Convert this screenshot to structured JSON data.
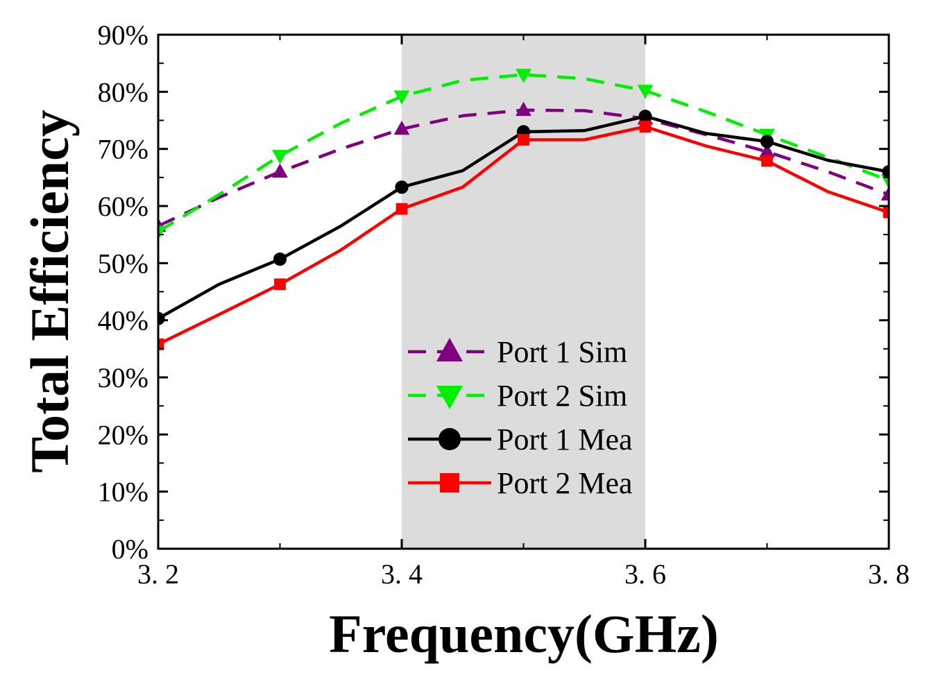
{
  "chart_data": {
    "type": "line",
    "title": "",
    "xlabel": "Frequency(GHz)",
    "ylabel": "Total Efficiency",
    "xlim": [
      3.2,
      3.8
    ],
    "ylim": [
      0,
      90
    ],
    "x_ticks": [
      {
        "value": 3.2,
        "label": "3. 2"
      },
      {
        "value": 3.4,
        "label": "3. 4"
      },
      {
        "value": 3.6,
        "label": "3. 6"
      },
      {
        "value": 3.8,
        "label": "3. 8"
      }
    ],
    "y_ticks": [
      {
        "value": 0,
        "label": "0%"
      },
      {
        "value": 10,
        "label": "10%"
      },
      {
        "value": 20,
        "label": "20%"
      },
      {
        "value": 30,
        "label": "30%"
      },
      {
        "value": 40,
        "label": "40%"
      },
      {
        "value": 50,
        "label": "50%"
      },
      {
        "value": 60,
        "label": "60%"
      },
      {
        "value": 70,
        "label": "70%"
      },
      {
        "value": 80,
        "label": "80%"
      },
      {
        "value": 90,
        "label": "90%"
      }
    ],
    "shaded_band": {
      "x_start": 3.4,
      "x_end": 3.6,
      "color": "#dcdcdc"
    },
    "legend_position": "center",
    "series": [
      {
        "name": "Port 1 Sim",
        "color": "#800080",
        "dash": "dashed",
        "marker": "triangle-up",
        "points": [
          [
            3.2,
            56.5
          ],
          [
            3.25,
            61.5
          ],
          [
            3.3,
            66
          ],
          [
            3.35,
            70
          ],
          [
            3.4,
            73.5
          ],
          [
            3.45,
            75.8
          ],
          [
            3.5,
            76.8
          ],
          [
            3.55,
            76.7
          ],
          [
            3.6,
            75.3
          ],
          [
            3.65,
            72.5
          ],
          [
            3.7,
            69.5
          ],
          [
            3.75,
            66
          ],
          [
            3.8,
            62
          ]
        ],
        "marker_x": [
          3.2,
          3.3,
          3.4,
          3.5,
          3.6,
          3.7,
          3.8
        ]
      },
      {
        "name": "Port 2 Sim",
        "color": "#00ee00",
        "dash": "dashed",
        "marker": "triangle-down",
        "points": [
          [
            3.2,
            55.5
          ],
          [
            3.25,
            62
          ],
          [
            3.3,
            68.8
          ],
          [
            3.35,
            74.5
          ],
          [
            3.4,
            79.2
          ],
          [
            3.45,
            82
          ],
          [
            3.5,
            83
          ],
          [
            3.55,
            82.3
          ],
          [
            3.6,
            80.2
          ],
          [
            3.65,
            76.5
          ],
          [
            3.7,
            72.5
          ],
          [
            3.75,
            68.5
          ],
          [
            3.8,
            64.5
          ]
        ],
        "marker_x": [
          3.2,
          3.3,
          3.4,
          3.5,
          3.6,
          3.7,
          3.8
        ]
      },
      {
        "name": "Port 1 Mea",
        "color": "#000000",
        "dash": "solid",
        "marker": "circle",
        "points": [
          [
            3.2,
            40.3
          ],
          [
            3.25,
            46.3
          ],
          [
            3.3,
            50.7
          ],
          [
            3.35,
            56.5
          ],
          [
            3.4,
            63.3
          ],
          [
            3.45,
            66.2
          ],
          [
            3.5,
            73
          ],
          [
            3.55,
            73.2
          ],
          [
            3.6,
            75.7
          ],
          [
            3.65,
            72.7
          ],
          [
            3.7,
            71.3
          ],
          [
            3.75,
            68
          ],
          [
            3.8,
            66
          ]
        ],
        "marker_x": [
          3.2,
          3.3,
          3.4,
          3.5,
          3.6,
          3.7,
          3.8
        ]
      },
      {
        "name": "Port 2 Mea",
        "color": "#ff0000",
        "dash": "solid",
        "marker": "square",
        "points": [
          [
            3.2,
            35.8
          ],
          [
            3.25,
            41
          ],
          [
            3.3,
            46.3
          ],
          [
            3.35,
            52.3
          ],
          [
            3.4,
            59.5
          ],
          [
            3.45,
            63.3
          ],
          [
            3.5,
            71.6
          ],
          [
            3.55,
            71.6
          ],
          [
            3.6,
            73.9
          ],
          [
            3.65,
            70.5
          ],
          [
            3.7,
            67.9
          ],
          [
            3.75,
            62.5
          ],
          [
            3.8,
            58.9
          ]
        ],
        "marker_x": [
          3.2,
          3.3,
          3.4,
          3.5,
          3.6,
          3.7,
          3.8
        ]
      }
    ]
  }
}
